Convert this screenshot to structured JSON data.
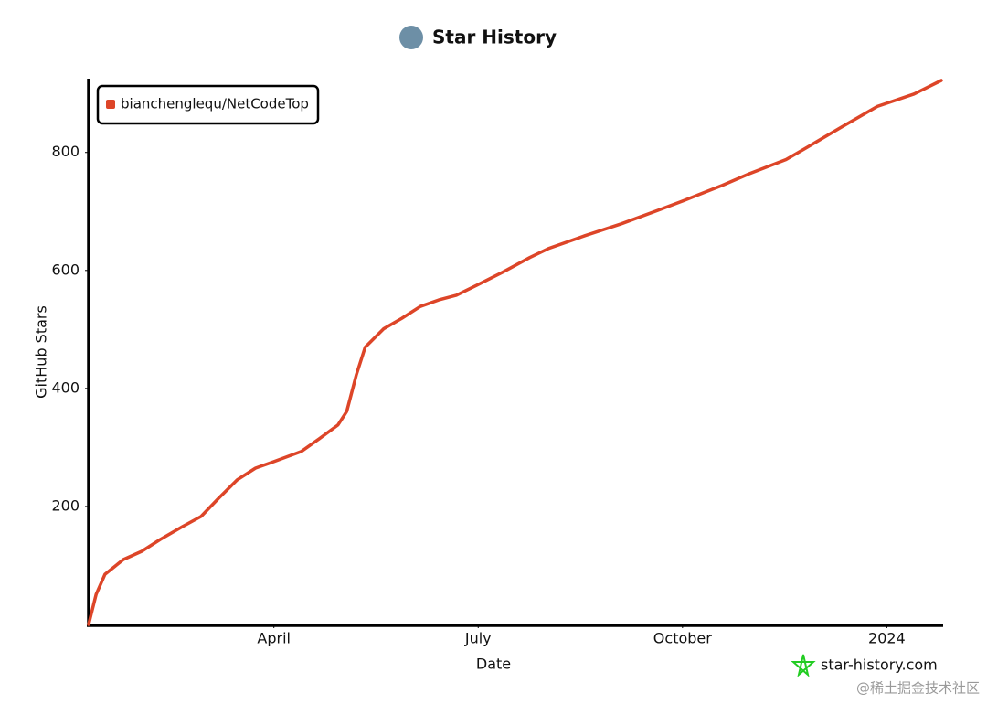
{
  "chart_data": {
    "type": "line",
    "title": "Star History",
    "x_label": "Date",
    "y_label": "GitHub Stars",
    "series": [
      {
        "name": "bianchenglequ/NetCodeTop",
        "color": "#dd4528",
        "x": [
          0.28,
          0.39,
          0.52,
          0.79,
          1.06,
          1.33,
          1.66,
          1.93,
          2.19,
          2.46,
          2.73,
          3.0,
          3.4,
          3.67,
          3.94,
          4.07,
          4.21,
          4.34,
          4.61,
          4.88,
          5.15,
          5.42,
          5.68,
          5.98,
          6.36,
          6.76,
          7.03,
          7.57,
          8.1,
          8.64,
          9.01,
          9.58,
          9.98,
          10.52,
          10.79,
          11.32,
          11.86,
          12.04,
          12.4,
          12.8
        ],
        "values": [
          0,
          51,
          85,
          110,
          124,
          144,
          166,
          183,
          214,
          245,
          265,
          276,
          293,
          315,
          338,
          361,
          423,
          470,
          501,
          519,
          539,
          550,
          558,
          575,
          597,
          622,
          637,
          659,
          679,
          702,
          718,
          744,
          764,
          788,
          806,
          842,
          878,
          885,
          899,
          922
        ]
      }
    ],
    "xlim": [
      0.28,
      12.8
    ],
    "xticks": [
      {
        "value": 3,
        "label": "April"
      },
      {
        "value": 6,
        "label": "July"
      },
      {
        "value": 9,
        "label": "October"
      },
      {
        "value": 12,
        "label": "2024"
      }
    ],
    "ylim": [
      0,
      922
    ],
    "yticks": [
      200,
      400,
      600,
      800
    ],
    "legend": "top-left",
    "watermark": "star-history.com",
    "credit": "@稀土掘金技术社区"
  }
}
